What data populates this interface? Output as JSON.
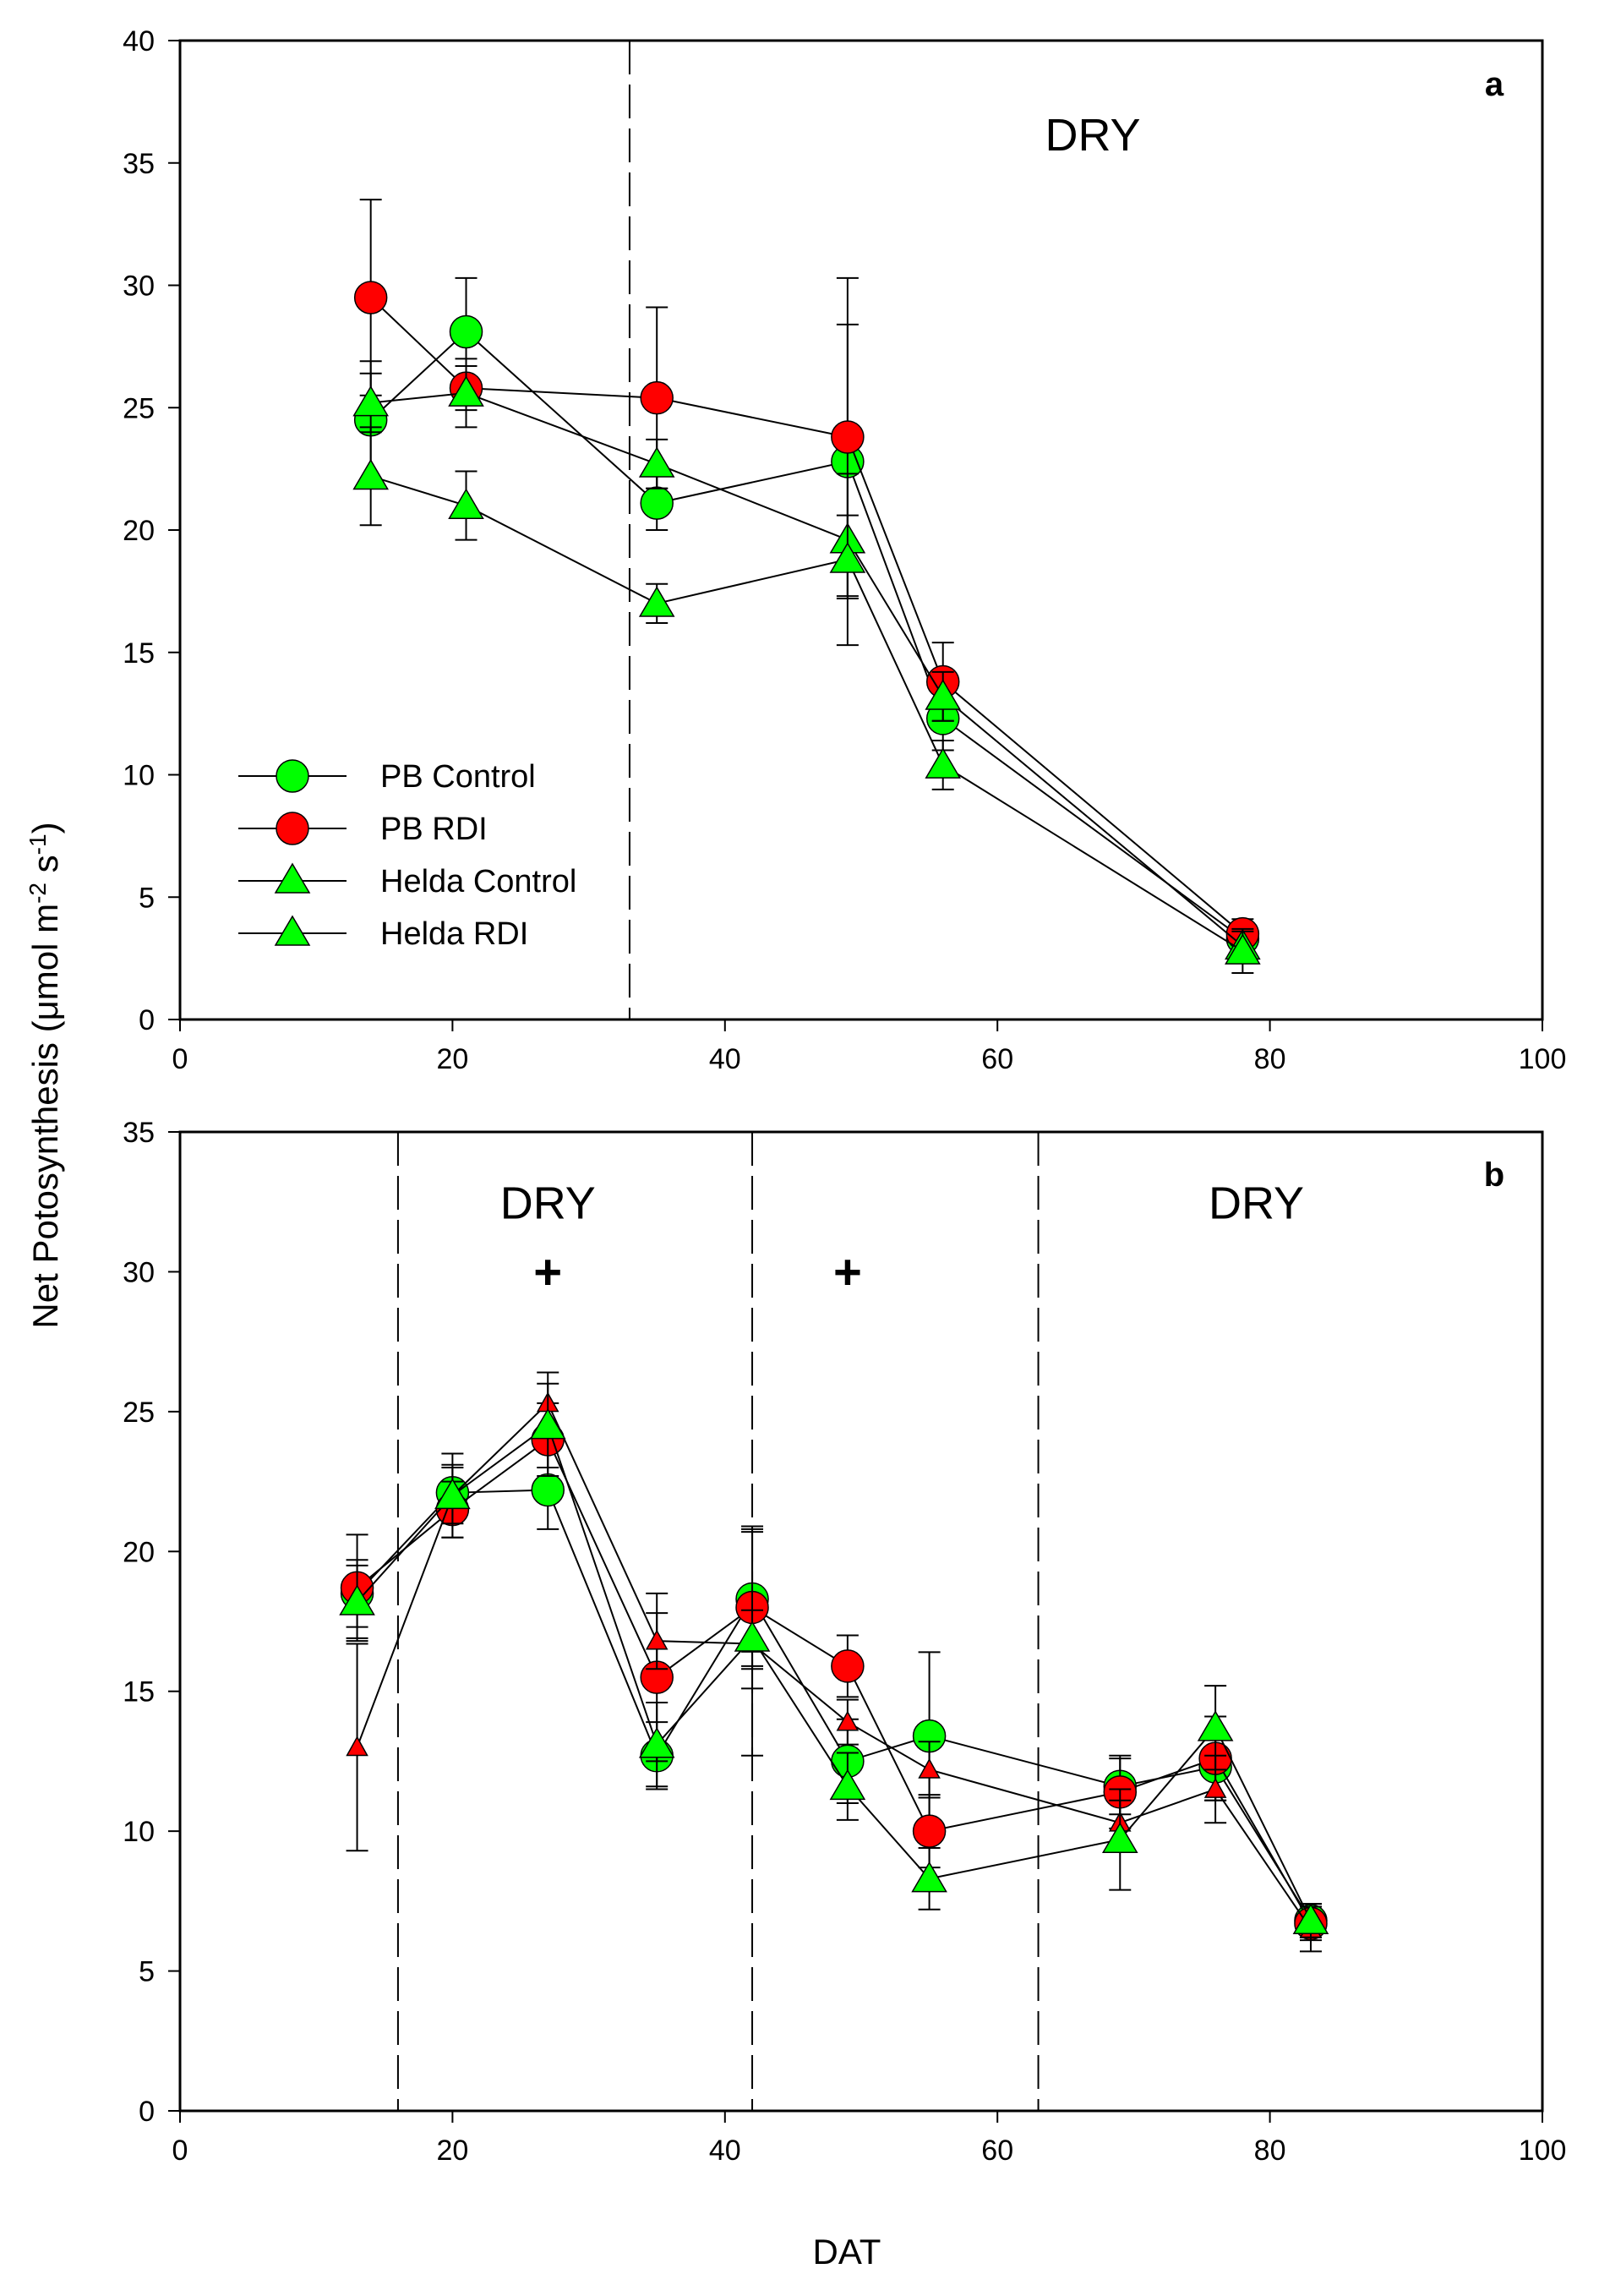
{
  "figure": {
    "ylabel": "Net Potosynthesis (μmol m-2 s-1)",
    "ylabel_main": "Net Potosynthesis (μmol m",
    "ylabel_sup1": "-2",
    "ylabel_mid": " s",
    "ylabel_sup2": "-1",
    "ylabel_end": ")",
    "xlabel": "DAT"
  },
  "chart_data": [
    {
      "type": "line",
      "panel": "a",
      "xlim": [
        0,
        100
      ],
      "ylim": [
        0,
        40
      ],
      "xticks": [
        0,
        20,
        40,
        60,
        80,
        100
      ],
      "yticks": [
        0,
        5,
        10,
        15,
        20,
        25,
        30,
        35,
        40
      ],
      "vlines": [
        33
      ],
      "annotations": [
        {
          "text": "DRY",
          "x": 67,
          "y": 36.2
        }
      ],
      "legend": {
        "location": "lower-left",
        "entries": [
          "PB Control",
          "PB RDI",
          "Helda Control",
          "Helda RDI"
        ]
      },
      "series": [
        {
          "name": "PB Control",
          "marker": "circle",
          "color": "#00ff00",
          "x": [
            14,
            21,
            35,
            49,
            56,
            78
          ],
          "y": [
            24.5,
            28.1,
            21.1,
            22.8,
            12.3,
            3.3
          ],
          "err": [
            2.4,
            2.2,
            1.1,
            5.6,
            1.3,
            0.6
          ]
        },
        {
          "name": "PB RDI",
          "marker": "circle",
          "color": "#ff0000",
          "x": [
            14,
            21,
            35,
            49,
            56,
            78
          ],
          "y": [
            29.5,
            25.8,
            25.4,
            23.8,
            13.8,
            3.5
          ],
          "err": [
            4.0,
            0.9,
            3.7,
            6.5,
            1.6,
            0.6
          ]
        },
        {
          "name": "Helda Control",
          "marker": "triangle",
          "color": "#00ff00",
          "x": [
            14,
            21,
            35,
            49,
            56,
            78
          ],
          "y": [
            25.2,
            25.6,
            22.7,
            19.6,
            13.2,
            3.0
          ],
          "err": [
            1.2,
            1.4,
            1.0,
            1.0,
            1.0,
            0.6
          ]
        },
        {
          "name": "Helda RDI",
          "marker": "triangle",
          "color": "#00ff00",
          "x": [
            14,
            21,
            35,
            49,
            56,
            78
          ],
          "y": [
            22.2,
            21.0,
            17.0,
            18.8,
            10.4,
            2.8
          ],
          "err": [
            2.0,
            1.4,
            0.8,
            3.5,
            1.0,
            0.9
          ]
        }
      ]
    },
    {
      "type": "line",
      "panel": "b",
      "xlim": [
        0,
        100
      ],
      "ylim": [
        0,
        35
      ],
      "xticks": [
        0,
        20,
        40,
        60,
        80,
        100
      ],
      "yticks": [
        0,
        5,
        10,
        15,
        20,
        25,
        30,
        35
      ],
      "vlines": [
        16,
        42,
        63
      ],
      "annotations": [
        {
          "text": "DRY",
          "x": 27,
          "y": 32.5
        },
        {
          "text": "DRY",
          "x": 79,
          "y": 32.5
        }
      ],
      "significance_markers": [
        {
          "text": "+",
          "x": 27,
          "y": 30
        },
        {
          "text": "+",
          "x": 49,
          "y": 30
        }
      ],
      "series": [
        {
          "name": "PB Control",
          "marker": "circle",
          "color": "#00ff00",
          "x": [
            13,
            20,
            27,
            35,
            42,
            49,
            55,
            69,
            76,
            83
          ],
          "y": [
            18.5,
            22.1,
            22.2,
            12.7,
            18.3,
            12.5,
            13.4,
            11.6,
            12.3,
            6.8
          ],
          "err": [
            1.2,
            1.0,
            1.4,
            1.2,
            2.5,
            1.5,
            3.0,
            1.0,
            1.2,
            0.6
          ]
        },
        {
          "name": "PB RDI",
          "marker": "circle",
          "color": "#ff0000",
          "x": [
            13,
            20,
            27,
            35,
            42,
            49,
            55,
            69,
            76,
            83
          ],
          "y": [
            18.7,
            21.5,
            24.0,
            15.5,
            18.0,
            15.9,
            10.0,
            11.4,
            12.6,
            6.7
          ],
          "err": [
            1.9,
            1.0,
            1.3,
            3.0,
            2.9,
            1.1,
            1.3,
            1.3,
            1.5,
            0.6
          ]
        },
        {
          "name": "Helda Control",
          "marker": "triangle-small",
          "color": "#ff0000",
          "x": [
            13,
            20,
            27,
            35,
            42,
            49,
            55,
            69,
            76,
            83
          ],
          "y": [
            13.0,
            22.0,
            25.3,
            16.8,
            16.7,
            13.9,
            12.2,
            10.3,
            11.5,
            6.5
          ],
          "err": [
            3.7,
            1.5,
            1.1,
            1.0,
            4.0,
            0.8,
            1.0,
            0.8,
            1.2,
            0.8
          ]
        },
        {
          "name": "Helda RDI",
          "marker": "triangle",
          "color": "#00ff00",
          "x": [
            13,
            20,
            27,
            35,
            42,
            49,
            55,
            69,
            76,
            83
          ],
          "y": [
            18.2,
            22.0,
            24.5,
            13.1,
            16.9,
            11.6,
            8.3,
            9.7,
            13.7,
            6.8
          ],
          "err": [
            1.3,
            1.0,
            1.5,
            1.5,
            1.0,
            1.2,
            1.1,
            1.8,
            1.5,
            0.6
          ]
        }
      ]
    }
  ]
}
